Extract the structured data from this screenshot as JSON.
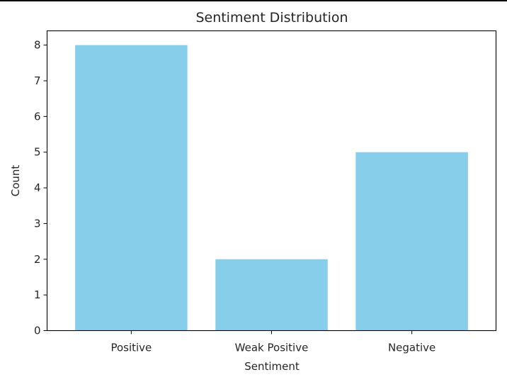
{
  "chart_data": {
    "type": "bar",
    "title": "Sentiment Distribution",
    "xlabel": "Sentiment",
    "ylabel": "Count",
    "categories": [
      "Positive",
      "Weak Positive",
      "Negative"
    ],
    "values": [
      8,
      2,
      5
    ],
    "ylim": [
      0,
      8.4
    ],
    "yticks": [
      "0",
      "1",
      "2",
      "3",
      "4",
      "5",
      "6",
      "7",
      "8"
    ],
    "bar_color": "#87CEEB",
    "grid": false,
    "legend": "none"
  }
}
